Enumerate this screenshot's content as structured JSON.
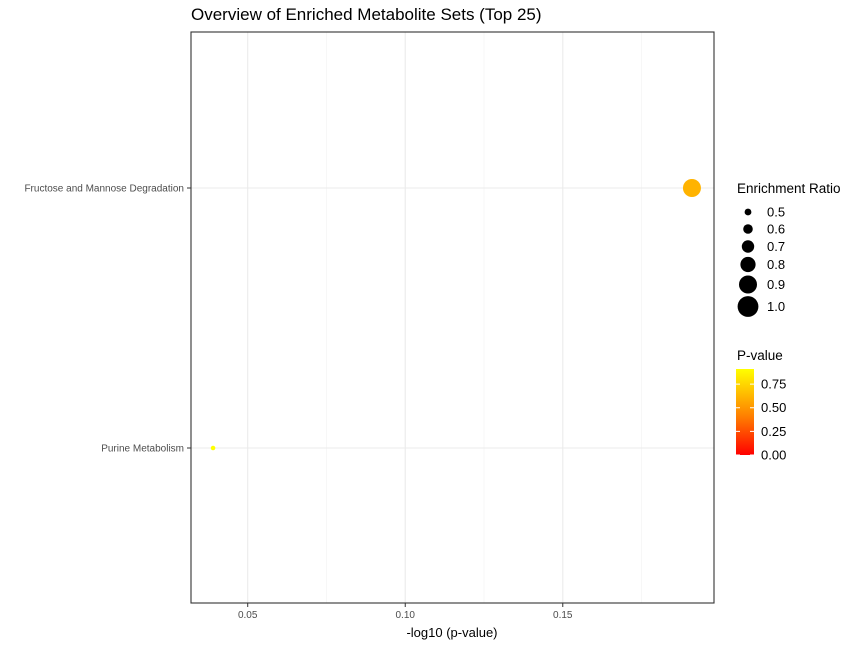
{
  "chart_data": {
    "type": "scatter",
    "title": "Overview of Enriched Metabolite Sets (Top 25)",
    "xlabel": "-log10 (p-value)",
    "ylabel": "",
    "xlim": [
      0.032,
      0.198
    ],
    "x_ticks": [
      0.05,
      0.1,
      0.15
    ],
    "x_tick_labels": [
      "0.05",
      "0.10",
      "0.15"
    ],
    "categories": [
      "Fructose and Mannose Degradation",
      "Purine Metabolism"
    ],
    "points": [
      {
        "category": "Fructose and Mannose Degradation",
        "x": 0.191,
        "enrichment_ratio": 0.9,
        "p_value": 0.64
      },
      {
        "category": "Purine Metabolism",
        "x": 0.039,
        "enrichment_ratio": 0.42,
        "p_value": 0.91
      }
    ],
    "grid": true,
    "size_legend": {
      "title": "Enrichment Ratio",
      "values": [
        0.5,
        0.6,
        0.7,
        0.8,
        0.9,
        1.0
      ],
      "labels": [
        "0.5",
        "0.6",
        "0.7",
        "0.8",
        "0.9",
        "1.0"
      ]
    },
    "color_legend": {
      "title": "P-value",
      "range": [
        0,
        0.91
      ],
      "ticks": [
        0.0,
        0.25,
        0.5,
        0.75
      ],
      "labels": [
        "0.00",
        "0.25",
        "0.50",
        "0.75"
      ],
      "low_color": "#ff0000",
      "high_color": "#ffff00"
    },
    "legend_position": "right"
  }
}
